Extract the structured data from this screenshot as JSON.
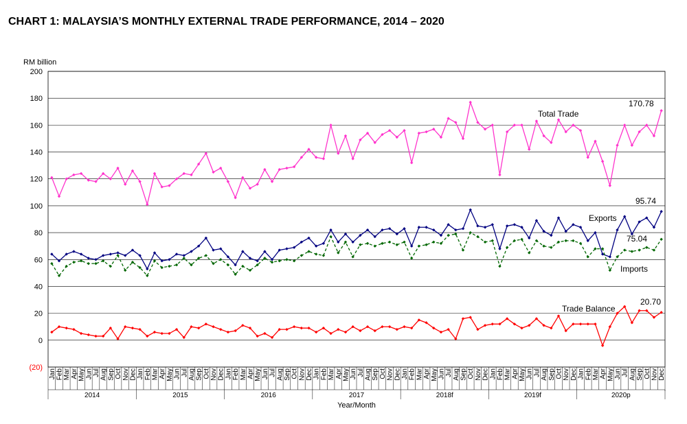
{
  "chart_data": {
    "type": "line",
    "title": "CHART 1: MALAYSIA’S MONTHLY EXTERNAL TRADE PERFORMANCE, 2014 – 2020",
    "y_label": "RM billion",
    "x_label": "Year/Month",
    "categories": [
      "Jan",
      "Feb",
      "Mar",
      "Apr",
      "May",
      "Jun",
      "Jul",
      "Aug",
      "Sep",
      "Oct",
      "Nov",
      "Dec",
      "Jan",
      "Feb",
      "Mar",
      "Apr",
      "May",
      "Jun",
      "Jul",
      "Aug",
      "Sep",
      "Oct",
      "Nov",
      "Dec",
      "Jan",
      "Feb",
      "Mar",
      "Apr",
      "May",
      "Jun",
      "Jul",
      "Aug",
      "Sep",
      "Oct",
      "Nov",
      "Dec",
      "Jan",
      "Feb",
      "Mar",
      "Apr",
      "May",
      "Jun",
      "Jul",
      "Aug",
      "Sep",
      "Oct",
      "Nov",
      "Dec",
      "Jan",
      "Feb",
      "Mar",
      "Apr",
      "May",
      "Jun",
      "Jul",
      "Aug",
      "Sep",
      "Oct",
      "Nov",
      "Dec",
      "Jan",
      "Feb",
      "Mar",
      "Apr",
      "May",
      "Jun",
      "Jul",
      "Aug",
      "Sep",
      "Oct",
      "Nov",
      "Dec",
      "Jan",
      "Feb",
      "Mar",
      "Apr",
      "May",
      "Jun",
      "Jul",
      "Aug",
      "Sep",
      "Oct",
      "Nov",
      "Dec"
    ],
    "year_groups": [
      "2014",
      "2015",
      "2016",
      "2017",
      "2018f",
      "2019f",
      "2020p"
    ],
    "ylim": [
      -20,
      200
    ],
    "yticks": [
      {
        "value": -20,
        "label": "(20)"
      },
      0,
      20,
      40,
      60,
      80,
      100,
      120,
      140,
      160,
      180,
      200
    ],
    "grid": true,
    "series": [
      {
        "name": "Total Trade",
        "color": "#ff33cc",
        "dash": false,
        "values": [
          121,
          107,
          120,
          123,
          124,
          119,
          118,
          124,
          120,
          128,
          116,
          126,
          118,
          101,
          124,
          114,
          115,
          120,
          124,
          123,
          131,
          139,
          125,
          128,
          118,
          106,
          121,
          113,
          116,
          127,
          118,
          127,
          128,
          129,
          136,
          142,
          136,
          135,
          160,
          139,
          152,
          135,
          149,
          154,
          147,
          153,
          156,
          151,
          156,
          132,
          154,
          155,
          157,
          151,
          165,
          162,
          150,
          177,
          162,
          157,
          160,
          123,
          155,
          160,
          160,
          142,
          163,
          152,
          147,
          164,
          155,
          160,
          156,
          136,
          148,
          133,
          115,
          145,
          160,
          145,
          155,
          160,
          152,
          170.78
        ],
        "value_labels": [
          null,
          null,
          null,
          null,
          null,
          null,
          null,
          null,
          null,
          null,
          null,
          null,
          null,
          null,
          null,
          null,
          null,
          null,
          null,
          null,
          null,
          null,
          null,
          null,
          null,
          null,
          null,
          null,
          null,
          null,
          null,
          null,
          null,
          null,
          null,
          null,
          null,
          null,
          null,
          null,
          null,
          null,
          null,
          null,
          null,
          null,
          null,
          null,
          null,
          null,
          null,
          null,
          null,
          null,
          null,
          null,
          null,
          null,
          null,
          null,
          null,
          null,
          null,
          null,
          null,
          null,
          null,
          null,
          null,
          null,
          null,
          null,
          null,
          null,
          null,
          null,
          null,
          null,
          null,
          null,
          null,
          null,
          null,
          "170.78"
        ]
      },
      {
        "name": "Exports",
        "color": "#000080",
        "dash": false,
        "values": [
          64,
          59,
          64,
          66,
          64,
          61,
          60,
          63,
          64,
          65,
          63,
          67,
          63,
          53,
          65,
          59,
          60,
          64,
          63,
          66,
          70,
          76,
          67,
          68,
          62,
          56,
          66,
          61,
          59,
          66,
          60,
          67,
          68,
          69,
          73,
          76,
          70,
          72,
          82,
          73,
          79,
          73,
          78,
          82,
          77,
          82,
          83,
          79,
          83,
          70,
          84,
          84,
          82,
          78,
          86,
          82,
          83,
          97,
          85,
          84,
          86,
          68,
          85,
          86,
          84,
          76,
          89,
          81,
          78,
          91,
          81,
          86,
          84,
          74,
          80,
          64,
          62,
          82,
          92,
          79,
          88,
          91,
          84,
          95.74
        ],
        "value_labels": [
          null,
          null,
          null,
          null,
          null,
          null,
          null,
          null,
          null,
          null,
          null,
          null,
          null,
          null,
          null,
          null,
          null,
          null,
          null,
          null,
          null,
          null,
          null,
          null,
          null,
          null,
          null,
          null,
          null,
          null,
          null,
          null,
          null,
          null,
          null,
          null,
          null,
          null,
          null,
          null,
          null,
          null,
          null,
          null,
          null,
          null,
          null,
          null,
          null,
          null,
          null,
          null,
          null,
          null,
          null,
          null,
          null,
          null,
          null,
          null,
          null,
          null,
          null,
          null,
          null,
          null,
          null,
          null,
          null,
          null,
          null,
          null,
          null,
          null,
          null,
          null,
          null,
          null,
          null,
          null,
          null,
          null,
          null,
          "95.74"
        ]
      },
      {
        "name": "Imports",
        "color": "#006600",
        "dash": true,
        "values": [
          57,
          48,
          55,
          58,
          59,
          57,
          57,
          59,
          55,
          63,
          52,
          58,
          54,
          48,
          59,
          54,
          55,
          56,
          61,
          56,
          61,
          63,
          57,
          60,
          56,
          49,
          55,
          52,
          56,
          61,
          58,
          59,
          60,
          59,
          63,
          66,
          64,
          63,
          77,
          65,
          73,
          62,
          71,
          72,
          70,
          72,
          73,
          71,
          73,
          61,
          70,
          71,
          73,
          72,
          78,
          79,
          67,
          80,
          77,
          73,
          74,
          55,
          69,
          74,
          75,
          65,
          74,
          70,
          69,
          73,
          74,
          74,
          72,
          62,
          68,
          68,
          52,
          62,
          67,
          66,
          67,
          69,
          67,
          75.04
        ],
        "value_labels": [
          null,
          null,
          null,
          null,
          null,
          null,
          null,
          null,
          null,
          null,
          null,
          null,
          null,
          null,
          null,
          null,
          null,
          null,
          null,
          null,
          null,
          null,
          null,
          null,
          null,
          null,
          null,
          null,
          null,
          null,
          null,
          null,
          null,
          null,
          null,
          null,
          null,
          null,
          null,
          null,
          null,
          null,
          null,
          null,
          null,
          null,
          null,
          null,
          null,
          null,
          null,
          null,
          null,
          null,
          null,
          null,
          null,
          null,
          null,
          null,
          null,
          null,
          null,
          null,
          null,
          null,
          null,
          null,
          null,
          null,
          null,
          null,
          null,
          null,
          null,
          null,
          null,
          null,
          null,
          null,
          null,
          null,
          null,
          "75.04"
        ]
      },
      {
        "name": "Trade Balance",
        "color": "#ff0000",
        "dash": false,
        "values": [
          6,
          10,
          9,
          8,
          5,
          4,
          3,
          3,
          9,
          1,
          10,
          9,
          8,
          3,
          6,
          5,
          5,
          8,
          2,
          10,
          9,
          12,
          10,
          8,
          6,
          7,
          11,
          9,
          3,
          5,
          2,
          8,
          8,
          10,
          9,
          9,
          6,
          9,
          5,
          8,
          6,
          10,
          7,
          10,
          7,
          10,
          10,
          8,
          10,
          9,
          15,
          13,
          9,
          6,
          8,
          1,
          16,
          17,
          8,
          11,
          12,
          12,
          16,
          12,
          9,
          11,
          16,
          11,
          9,
          18,
          7,
          12,
          12,
          12,
          12,
          -4,
          10,
          20,
          25,
          13,
          22,
          22,
          17,
          20.7
        ],
        "value_labels": [
          null,
          null,
          null,
          null,
          null,
          null,
          null,
          null,
          null,
          null,
          null,
          null,
          null,
          null,
          null,
          null,
          null,
          null,
          null,
          null,
          null,
          null,
          null,
          null,
          null,
          null,
          null,
          null,
          null,
          null,
          null,
          null,
          null,
          null,
          null,
          null,
          null,
          null,
          null,
          null,
          null,
          null,
          null,
          null,
          null,
          null,
          null,
          null,
          null,
          null,
          null,
          null,
          null,
          null,
          null,
          null,
          null,
          null,
          null,
          null,
          null,
          null,
          null,
          null,
          null,
          null,
          null,
          null,
          null,
          null,
          null,
          null,
          null,
          null,
          null,
          null,
          null,
          null,
          null,
          null,
          null,
          null,
          null,
          "20.70"
        ]
      }
    ]
  }
}
